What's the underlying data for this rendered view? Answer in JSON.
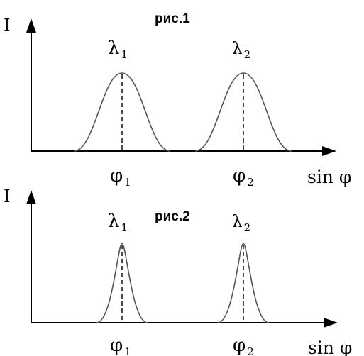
{
  "panels": [
    {
      "caption": "рис.1",
      "y_label": "I",
      "x_label": "sin φ",
      "peaks": [
        {
          "wavelength": "λ",
          "wavelength_sub": "1",
          "angle": "φ",
          "angle_sub": "1"
        },
        {
          "wavelength": "λ",
          "wavelength_sub": "2",
          "angle": "φ",
          "angle_sub": "2"
        }
      ]
    },
    {
      "caption": "рис.2",
      "y_label": "I",
      "x_label": "sin φ",
      "peaks": [
        {
          "wavelength": "λ",
          "wavelength_sub": "1",
          "angle": "φ",
          "angle_sub": "1"
        },
        {
          "wavelength": "λ",
          "wavelength_sub": "2",
          "angle": "φ",
          "angle_sub": "2"
        }
      ]
    }
  ]
}
